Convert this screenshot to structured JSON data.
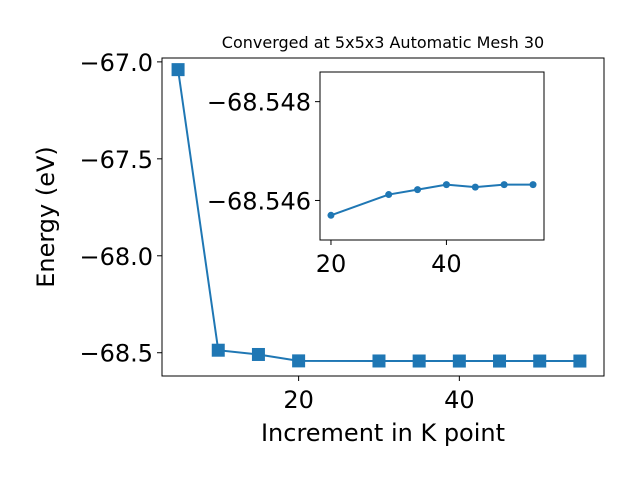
{
  "chart_data": [
    {
      "type": "line",
      "title": "Converged at 5x5x3 Automatic Mesh 30",
      "xlabel": "Increment in K point",
      "ylabel": "Energy (eV)",
      "xlim": [
        3,
        58
      ],
      "ylim": [
        -68.62,
        -66.98
      ],
      "xticks": [
        20,
        40
      ],
      "xtick_labels": [
        "20",
        "40"
      ],
      "yticks": [
        -67.0,
        -67.5,
        -68.0,
        -68.5
      ],
      "ytick_labels": [
        "−67.0",
        "−67.5",
        "−68.0",
        "−68.5"
      ],
      "marker": "square",
      "color": "#1f77b4",
      "x": [
        5,
        10,
        15,
        20,
        30,
        35,
        40,
        45,
        50,
        55
      ],
      "y": [
        -67.04,
        -68.487,
        -68.509,
        -68.542,
        -68.5425,
        -68.5427,
        -68.5428,
        -68.5428,
        -68.5428,
        -68.5428
      ]
    },
    {
      "type": "line",
      "title": "",
      "xlim": [
        18.1,
        56.9
      ],
      "ylim": [
        -68.5452,
        -68.5486
      ],
      "xticks": [
        20,
        40
      ],
      "xtick_labels": [
        "20",
        "40"
      ],
      "yticks": [
        -68.548,
        -68.546
      ],
      "ytick_labels": [
        "−68.548",
        "−68.546"
      ],
      "marker": "circle",
      "color": "#1f77b4",
      "x": [
        20,
        30,
        35,
        40,
        45,
        50,
        55
      ],
      "y": [
        -68.5457,
        -68.54612,
        -68.54622,
        -68.54632,
        -68.54627,
        -68.54632,
        -68.54632
      ]
    }
  ]
}
